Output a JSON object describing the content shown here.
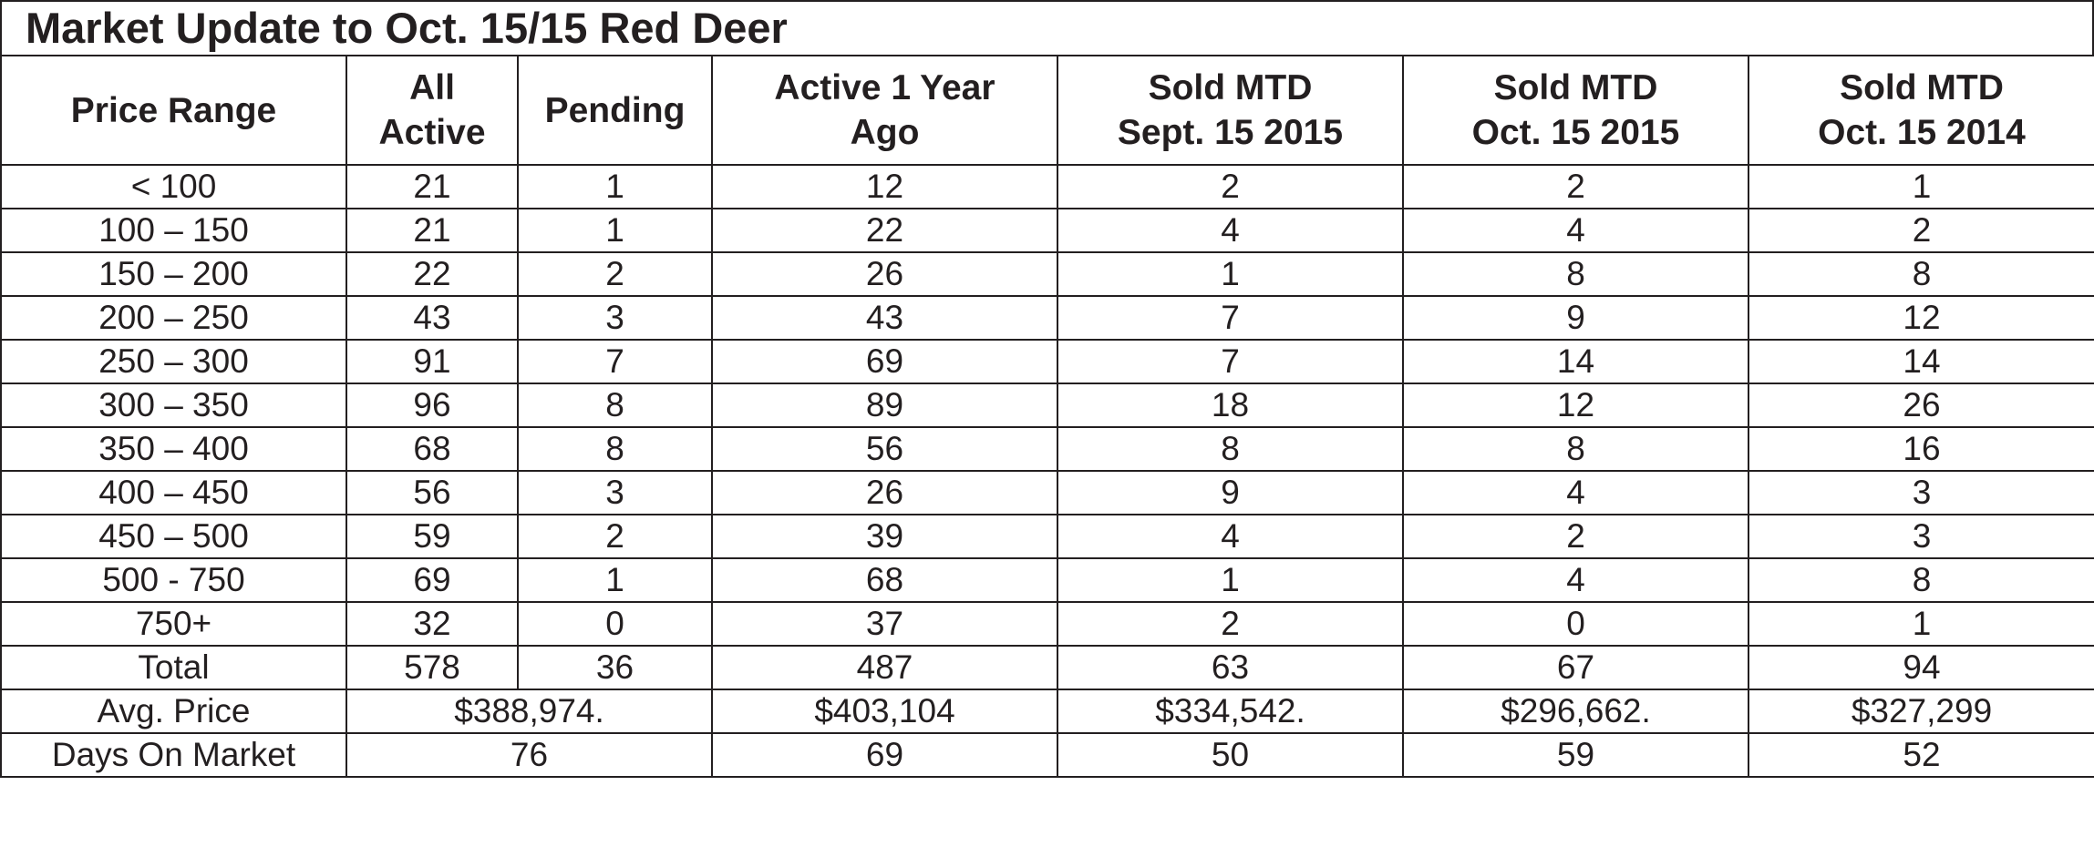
{
  "title": "Market Update to Oct. 15/15 Red Deer",
  "headers": [
    {
      "line1": "Price Range",
      "line2": ""
    },
    {
      "line1": "All",
      "line2": "Active"
    },
    {
      "line1": "Pending",
      "line2": ""
    },
    {
      "line1": "Active 1 Year",
      "line2": "Ago"
    },
    {
      "line1": "Sold MTD",
      "line2": "Sept. 15 2015"
    },
    {
      "line1": "Sold MTD",
      "line2": "Oct. 15 2015"
    },
    {
      "line1": "Sold MTD",
      "line2": "Oct. 15 2014"
    }
  ],
  "rows": [
    [
      "< 100",
      "21",
      "1",
      "12",
      "2",
      "2",
      "1"
    ],
    [
      "100 – 150",
      "21",
      "1",
      "22",
      "4",
      "4",
      "2"
    ],
    [
      "150 – 200",
      "22",
      "2",
      "26",
      "1",
      "8",
      "8"
    ],
    [
      "200 – 250",
      "43",
      "3",
      "43",
      "7",
      "9",
      "12"
    ],
    [
      "250 – 300",
      "91",
      "7",
      "69",
      "7",
      "14",
      "14"
    ],
    [
      "300 – 350",
      "96",
      "8",
      "89",
      "18",
      "12",
      "26"
    ],
    [
      "350 – 400",
      "68",
      "8",
      "56",
      "8",
      "8",
      "16"
    ],
    [
      "400 – 450",
      "56",
      "3",
      "26",
      "9",
      "4",
      "3"
    ],
    [
      "450 – 500",
      "59",
      "2",
      "39",
      "4",
      "2",
      "3"
    ],
    [
      "500 - 750",
      "69",
      "1",
      "68",
      "1",
      "4",
      "8"
    ],
    [
      "750+",
      "32",
      "0",
      "37",
      "2",
      "0",
      "1"
    ],
    [
      "Total",
      "578",
      "36",
      "487",
      "63",
      "67",
      "94"
    ]
  ],
  "avg_price": {
    "label": "Avg. Price",
    "active_pending": "$388,974.",
    "active_1yr": "$403,104",
    "sold_sept_2015": "$334,542.",
    "sold_oct_2015": "$296,662.",
    "sold_oct_2014": "$327,299"
  },
  "days_on_market": {
    "label": "Days On Market",
    "active_pending": "76",
    "active_1yr": "69",
    "sold_sept_2015": "50",
    "sold_oct_2015": "59",
    "sold_oct_2014": "52"
  }
}
